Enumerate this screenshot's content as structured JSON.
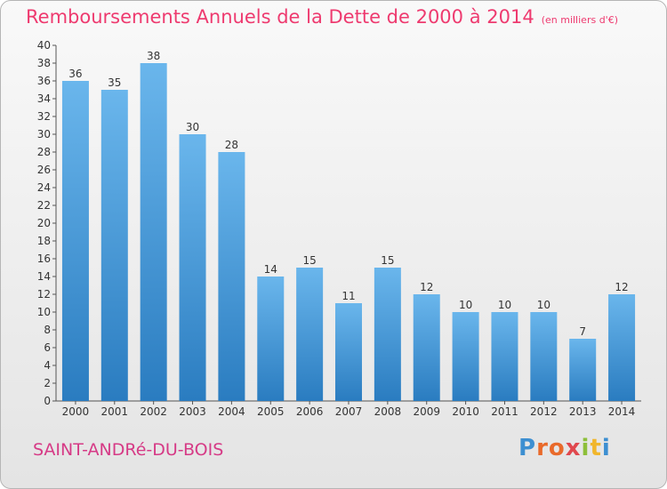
{
  "title": "Remboursements Annuels de la Dette de 2000 à 2014",
  "subtitle": "(en milliers d'€)",
  "city": "SAINT-ANDRé-DU-BOIS",
  "logo": "Proxiti",
  "colors": {
    "title": "#ee3a6f",
    "bar_top": "#6ab6ec",
    "bar_bottom": "#2a7cc0"
  },
  "chart_data": {
    "type": "bar",
    "title": "Remboursements Annuels de la Dette de 2000 à 2014",
    "categories": [
      "2000",
      "2001",
      "2002",
      "2003",
      "2004",
      "2005",
      "2006",
      "2007",
      "2008",
      "2009",
      "2010",
      "2011",
      "2012",
      "2013",
      "2014"
    ],
    "values": [
      36,
      35,
      38,
      30,
      28,
      14,
      15,
      11,
      15,
      12,
      10,
      10,
      10,
      7,
      12
    ],
    "ylim": [
      0,
      40
    ],
    "yticks": [
      0,
      2,
      4,
      6,
      8,
      10,
      12,
      14,
      16,
      18,
      20,
      22,
      24,
      26,
      28,
      30,
      32,
      34,
      36,
      38,
      40
    ],
    "grid": false,
    "data_labels": true
  }
}
